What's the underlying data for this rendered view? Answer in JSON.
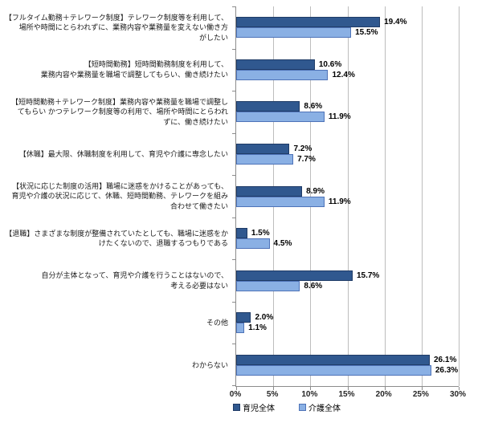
{
  "chart_data": {
    "type": "bar",
    "orientation": "horizontal",
    "title": "",
    "categories": [
      "【フルタイム勤務＋テレワーク制度】テレワーク制度等を利用して、\n場所や時間にとらわれずに、業務内容や業務量を変えない働き方\nがしたい",
      "【短時間勤務】短時間勤務制度を利用して、\n業務内容や業務量を職場で調整してもらい、働き続けたい",
      "【短時間勤務＋テレワーク制度】業務内容や業務量を職場で調整し\nてもらい かつテレワーク制度等の利用で、場所や時間にとらわれ\nずに、働き続けたい",
      "【休職】最大限、休職制度を利用して、育児や介護に専念したい",
      "【状況に応じた制度の活用】職場に迷惑をかけることがあっても、\n育児や介護の状況に応じて、休職、短時間勤務、テレワークを組み\n合わせて働きたい",
      "【退職】さまざまな制度が整備されていたとしても、職場に迷惑をか\nけたくないので、退職するつもりである",
      "自分が主体となって、育児や介護を行うことはないので、\n考える必要はない",
      "その他",
      "わからない"
    ],
    "series": [
      {
        "name": "育児全体",
        "fill": "#30588F",
        "border": "#1F3B66",
        "values": [
          19.4,
          10.6,
          8.6,
          7.2,
          8.9,
          1.5,
          15.7,
          2.0,
          26.1
        ]
      },
      {
        "name": "介護全体",
        "fill": "#8AB0E4",
        "border": "#4E73B8",
        "values": [
          15.5,
          12.4,
          11.9,
          7.7,
          11.9,
          4.5,
          8.6,
          1.1,
          26.3
        ]
      }
    ],
    "x_ticks": [
      "0%",
      "5%",
      "10%",
      "15%",
      "20%",
      "25%",
      "30%"
    ],
    "xlim": [
      0,
      30
    ],
    "value_suffix": "%",
    "grid": true,
    "legend_position": "bottom"
  },
  "colors": {
    "gridline": "#BDBDBD",
    "axis": "#8C8C8C",
    "label_text": "#1A1A1A",
    "value_text": "#000000"
  }
}
